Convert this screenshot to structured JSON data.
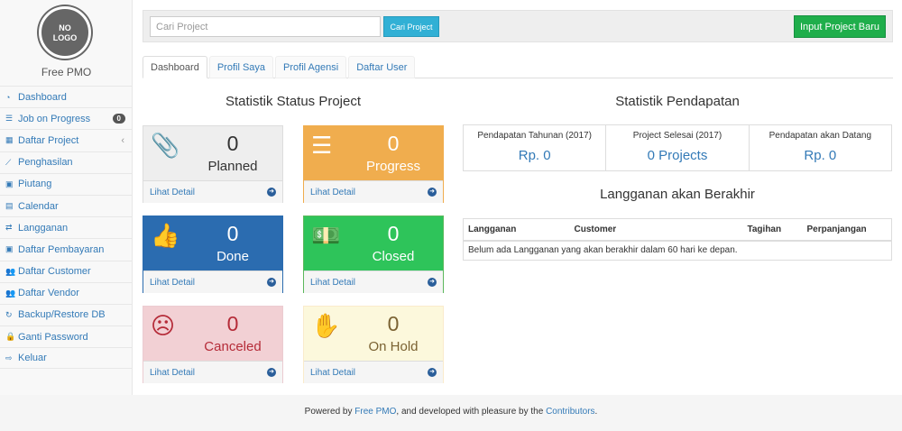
{
  "sidebar": {
    "logo_text": "NO LOGO",
    "brand": "Free PMO",
    "items": [
      {
        "label": "Dashboard",
        "icon": "dashboard-icon",
        "glyph": "◔"
      },
      {
        "label": "Job on Progress",
        "icon": "tasks-icon",
        "glyph": "☰",
        "badge": "0"
      },
      {
        "label": "Daftar Project",
        "icon": "table-icon",
        "glyph": "▦",
        "chevron": "‹"
      },
      {
        "label": "Penghasilan",
        "icon": "line-chart-icon",
        "glyph": "⟋"
      },
      {
        "label": "Piutang",
        "icon": "money-icon",
        "glyph": "▣"
      },
      {
        "label": "Calendar",
        "icon": "calendar-icon",
        "glyph": "▤"
      },
      {
        "label": "Langganan",
        "icon": "retweet-icon",
        "glyph": "⇄"
      },
      {
        "label": "Daftar Pembayaran",
        "icon": "money-icon",
        "glyph": "▣"
      },
      {
        "label": "Daftar Customer",
        "icon": "users-icon",
        "glyph": "👥"
      },
      {
        "label": "Daftar Vendor",
        "icon": "users-icon",
        "glyph": "👥"
      },
      {
        "label": "Backup/Restore DB",
        "icon": "refresh-icon",
        "glyph": "↻"
      },
      {
        "label": "Ganti Password",
        "icon": "lock-icon",
        "glyph": "🔒"
      },
      {
        "label": "Keluar",
        "icon": "sign-out-icon",
        "glyph": "⇨"
      }
    ]
  },
  "topbar": {
    "search_placeholder": "Cari Project",
    "search_value": "",
    "search_button": "Cari Project",
    "new_button": "Input Project Baru"
  },
  "tabs": [
    "Dashboard",
    "Profil Saya",
    "Profil Agensi",
    "Daftar User"
  ],
  "status": {
    "title": "Statistik Status Project",
    "detail_label": "Lihat Detail",
    "cards": [
      {
        "label": "Planned",
        "count": "0",
        "icon": "paperclip-icon",
        "glyph": "📎",
        "bg": "#eeeeee",
        "fg": "#333333",
        "border": "#dddddd"
      },
      {
        "label": "Progress",
        "count": "0",
        "icon": "tasks-icon",
        "glyph": "☰",
        "bg": "#f0ad4e",
        "fg": "#ffffff",
        "border": "#f0ad4e"
      },
      {
        "label": "Done",
        "count": "0",
        "icon": "thumbs-up-icon",
        "glyph": "👍",
        "bg": "#2b6cb0",
        "fg": "#ffffff",
        "border": "#2b6cb0"
      },
      {
        "label": "Closed",
        "count": "0",
        "icon": "money-icon",
        "glyph": "💵",
        "bg": "#2ec45a",
        "fg": "#ffffff",
        "border": "#5cb85c"
      },
      {
        "label": "Canceled",
        "count": "0",
        "icon": "frown-icon",
        "glyph": "☹",
        "bg": "#f2d0d4",
        "fg": "#b52b38",
        "border": "#ebccd1"
      },
      {
        "label": "On Hold",
        "count": "0",
        "icon": "hand-icon",
        "glyph": "✋",
        "bg": "#fcf8dc",
        "fg": "#7a6232",
        "border": "#faebcc"
      }
    ]
  },
  "income": {
    "title": "Statistik Pendapatan",
    "stats": [
      {
        "label": "Pendapatan Tahunan (2017)",
        "value": "Rp. 0"
      },
      {
        "label": "Project Selesai (2017)",
        "value": "0 Projects"
      },
      {
        "label": "Pendapatan akan Datang",
        "value": "Rp. 0"
      }
    ]
  },
  "subscriptions": {
    "title": "Langganan akan Berakhir",
    "columns": [
      "Langganan",
      "Customer",
      "Tagihan",
      "Perpanjangan"
    ],
    "empty": "Belum ada Langganan yang akan berakhir dalam 60 hari ke depan."
  },
  "footer": {
    "prefix": "Powered by ",
    "link1": "Free PMO",
    "middle": ", and developed with pleasure by the ",
    "link2": "Contributors",
    "suffix": "."
  }
}
